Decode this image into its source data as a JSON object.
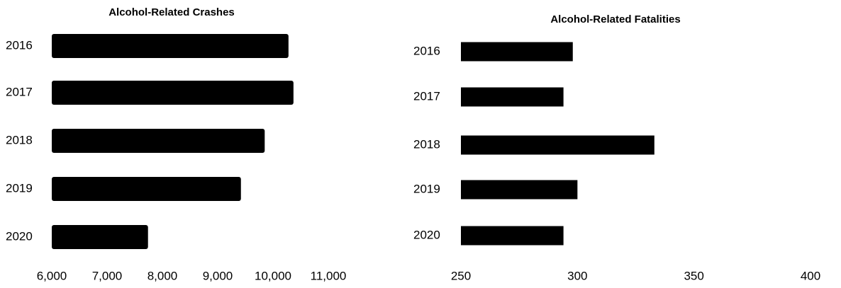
{
  "chart_data": [
    {
      "type": "bar",
      "orientation": "horizontal",
      "title": "Alcohol-Related Crashes",
      "categories": [
        "2016",
        "2017",
        "2018",
        "2019",
        "2020"
      ],
      "values": [
        10280,
        10370,
        9850,
        9420,
        7740
      ],
      "color": "#000000",
      "xlim": [
        6000,
        11000
      ],
      "xticks": [
        {
          "value": 6000,
          "label": "6,000"
        },
        {
          "value": 7000,
          "label": "7,000"
        },
        {
          "value": 8000,
          "label": "8,000"
        },
        {
          "value": 9000,
          "label": "9,000"
        },
        {
          "value": 10000,
          "label": "10,000"
        },
        {
          "value": 11000,
          "label": "11,000"
        }
      ],
      "grid": false
    },
    {
      "type": "bar",
      "orientation": "horizontal",
      "title": "Alcohol-Related Fatalities",
      "categories": [
        "2016",
        "2017",
        "2018",
        "2019",
        "2020"
      ],
      "values": [
        298,
        294,
        333,
        300,
        294
      ],
      "color": "#000000",
      "xlim": [
        250,
        400
      ],
      "xticks": [
        250,
        300,
        350,
        400
      ],
      "grid": false
    }
  ]
}
